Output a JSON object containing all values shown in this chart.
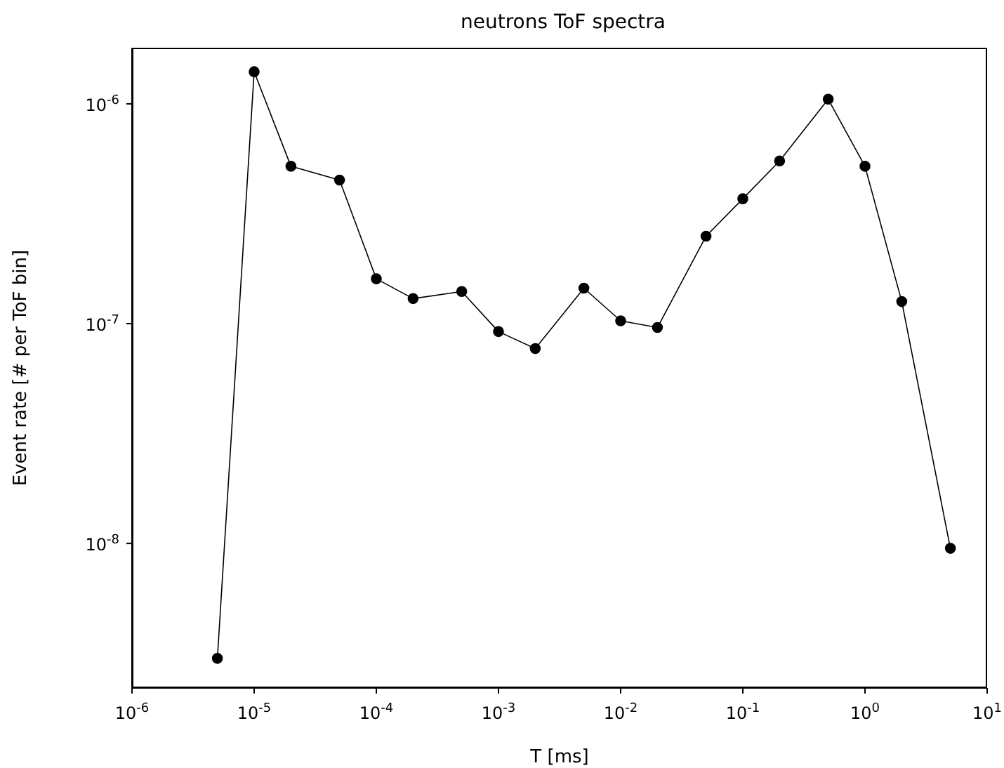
{
  "chart_data": {
    "type": "line",
    "title": "neutrons ToF spectra",
    "xlabel": "T [ms]",
    "ylabel": "Event rate [# per ToF bin]",
    "log": "xy",
    "grid": false,
    "marker": "circle",
    "line_style": "solid",
    "x": [
      5e-06,
      1e-05,
      2e-05,
      5e-05,
      0.0001,
      0.0002,
      0.0005,
      0.001,
      0.002,
      0.005,
      0.01,
      0.02,
      0.05,
      0.1,
      0.2,
      0.5,
      1,
      2,
      5
    ],
    "series": [
      {
        "color": "#000000",
        "values": [
          3e-09,
          1.4e-06,
          5.2e-07,
          4.5e-07,
          1.6e-07,
          1.3e-07,
          1.4e-07,
          9.2e-08,
          7.7e-08,
          1.45e-07,
          1.03e-07,
          9.6e-08,
          2.5e-07,
          3.7e-07,
          5.5e-07,
          1.05e-06,
          5.2e-07,
          1.26e-07,
          9.5e-09
        ]
      }
    ],
    "xlim": [
      1e-06,
      10
    ],
    "ylim": [
      2.2e-09,
      1.8e-06
    ],
    "xticks": [
      {
        "value": 1e-06,
        "label": "10$^{-6}$"
      },
      {
        "value": 1e-05,
        "label": "10$^{-5}$"
      },
      {
        "value": 0.0001,
        "label": "10$^{-4}$"
      },
      {
        "value": 0.001,
        "label": "10$^{-3}$"
      },
      {
        "value": 0.01,
        "label": "10$^{-2}$"
      },
      {
        "value": 0.1,
        "label": "10$^{-1}$"
      },
      {
        "value": 1,
        "label": "10$^{0}$"
      },
      {
        "value": 10,
        "label": "10$^{1}$"
      }
    ],
    "yticks": [
      {
        "value": 1e-08,
        "label": "10$^{-8}$"
      },
      {
        "value": 1e-07,
        "label": "10$^{-7}$"
      },
      {
        "value": 1e-06,
        "label": "10$^{-6}$"
      }
    ]
  }
}
